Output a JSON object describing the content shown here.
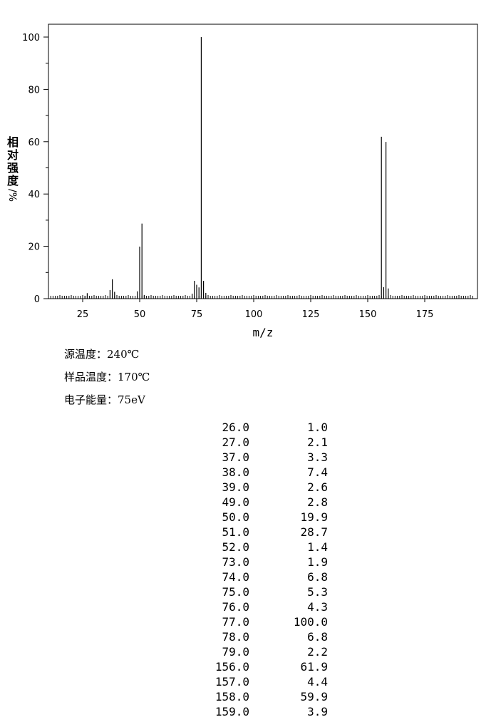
{
  "chart_data": {
    "type": "bar",
    "xlabel": "m/z",
    "ylabel": "相对强度/%",
    "xlim": [
      10,
      196
    ],
    "ylim": [
      0,
      100
    ],
    "xticks": [
      25,
      50,
      75,
      100,
      125,
      150,
      175
    ],
    "yticks": [
      0,
      20,
      40,
      60,
      80,
      100
    ],
    "grid": false,
    "peaks": [
      {
        "mz": 26.0,
        "intensity": 1.0
      },
      {
        "mz": 27.0,
        "intensity": 2.1
      },
      {
        "mz": 37.0,
        "intensity": 3.3
      },
      {
        "mz": 38.0,
        "intensity": 7.4
      },
      {
        "mz": 39.0,
        "intensity": 2.6
      },
      {
        "mz": 49.0,
        "intensity": 2.8
      },
      {
        "mz": 50.0,
        "intensity": 19.9
      },
      {
        "mz": 51.0,
        "intensity": 28.7
      },
      {
        "mz": 52.0,
        "intensity": 1.4
      },
      {
        "mz": 73.0,
        "intensity": 1.9
      },
      {
        "mz": 74.0,
        "intensity": 6.8
      },
      {
        "mz": 75.0,
        "intensity": 5.3
      },
      {
        "mz": 76.0,
        "intensity": 4.3
      },
      {
        "mz": 77.0,
        "intensity": 100.0
      },
      {
        "mz": 78.0,
        "intensity": 6.8
      },
      {
        "mz": 79.0,
        "intensity": 2.2
      },
      {
        "mz": 156.0,
        "intensity": 61.9
      },
      {
        "mz": 157.0,
        "intensity": 4.4
      },
      {
        "mz": 158.0,
        "intensity": 59.9
      },
      {
        "mz": 159.0,
        "intensity": 3.9
      }
    ]
  },
  "conditions": [
    {
      "label": "源温度：",
      "value": "240℃"
    },
    {
      "label": "样品温度：",
      "value": "170℃"
    },
    {
      "label": "电子能量：",
      "value": "75eV"
    }
  ],
  "peak_table": [
    {
      "mz": "26.0",
      "intensity": "1.0"
    },
    {
      "mz": "27.0",
      "intensity": "2.1"
    },
    {
      "mz": "37.0",
      "intensity": "3.3"
    },
    {
      "mz": "38.0",
      "intensity": "7.4"
    },
    {
      "mz": "39.0",
      "intensity": "2.6"
    },
    {
      "mz": "49.0",
      "intensity": "2.8"
    },
    {
      "mz": "50.0",
      "intensity": "19.9"
    },
    {
      "mz": "51.0",
      "intensity": "28.7"
    },
    {
      "mz": "52.0",
      "intensity": "1.4"
    },
    {
      "mz": "73.0",
      "intensity": "1.9"
    },
    {
      "mz": "74.0",
      "intensity": "6.8"
    },
    {
      "mz": "75.0",
      "intensity": "5.3"
    },
    {
      "mz": "76.0",
      "intensity": "4.3"
    },
    {
      "mz": "77.0",
      "intensity": "100.0"
    },
    {
      "mz": "78.0",
      "intensity": "6.8"
    },
    {
      "mz": "79.0",
      "intensity": "2.2"
    },
    {
      "mz": "156.0",
      "intensity": "61.9"
    },
    {
      "mz": "157.0",
      "intensity": "4.4"
    },
    {
      "mz": "158.0",
      "intensity": "59.9"
    },
    {
      "mz": "159.0",
      "intensity": "3.9"
    }
  ]
}
